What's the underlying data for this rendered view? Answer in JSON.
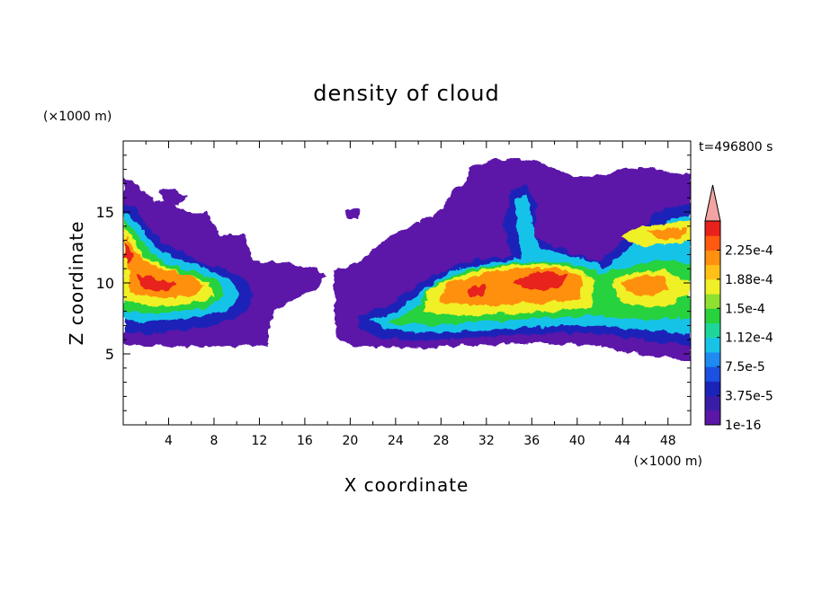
{
  "chart_data": {
    "type": "heatmap",
    "title": "density of cloud",
    "xlabel": "X coordinate",
    "ylabel": "Z coordinate",
    "x_unit": "(×1000 m)",
    "y_unit": "(×1000 m)",
    "time_label": "t=496800 s",
    "xlim": [
      0,
      50
    ],
    "ylim": [
      0,
      20
    ],
    "x_ticks": [
      4,
      8,
      12,
      16,
      20,
      24,
      28,
      32,
      36,
      40,
      44,
      48
    ],
    "y_ticks": [
      5,
      10,
      15
    ],
    "colorbar": {
      "extend": "max",
      "extend_color": "#f4a3a3",
      "levels": [
        1e-16,
        1.875e-05,
        3.75e-05,
        5.625e-05,
        7.5e-05,
        9.375e-05,
        0.0001125,
        0.00013125,
        0.00015,
        0.00016875,
        0.0001875,
        0.00020625,
        0.000225,
        0.00024375
      ],
      "colors": [
        "#5b16a8",
        "#3b1ca6",
        "#1a24b8",
        "#1b50e0",
        "#1f8af0",
        "#18c3e8",
        "#1fd69a",
        "#27d23c",
        "#8fe030",
        "#f0f028",
        "#ffc018",
        "#ff9010",
        "#ff5a10",
        "#e8221a"
      ],
      "tick_labels": [
        "1e-16",
        "3.75e-5",
        "7.5e-5",
        "1.12e-4",
        "1.5e-4",
        "1.88e-4",
        "2.25e-4"
      ],
      "tick_level_index": [
        0,
        2,
        4,
        6,
        8,
        10,
        12
      ]
    },
    "cloud_regions": [
      {
        "name": "left cloud",
        "x_range": [
          0,
          17.5
        ],
        "z_range": [
          5.6,
          17.5
        ],
        "peak": 0.00024
      },
      {
        "name": "central-right cloud",
        "x_range": [
          20,
          50
        ],
        "z_range": [
          5.4,
          18.3
        ],
        "peak": 0.00025
      }
    ]
  }
}
